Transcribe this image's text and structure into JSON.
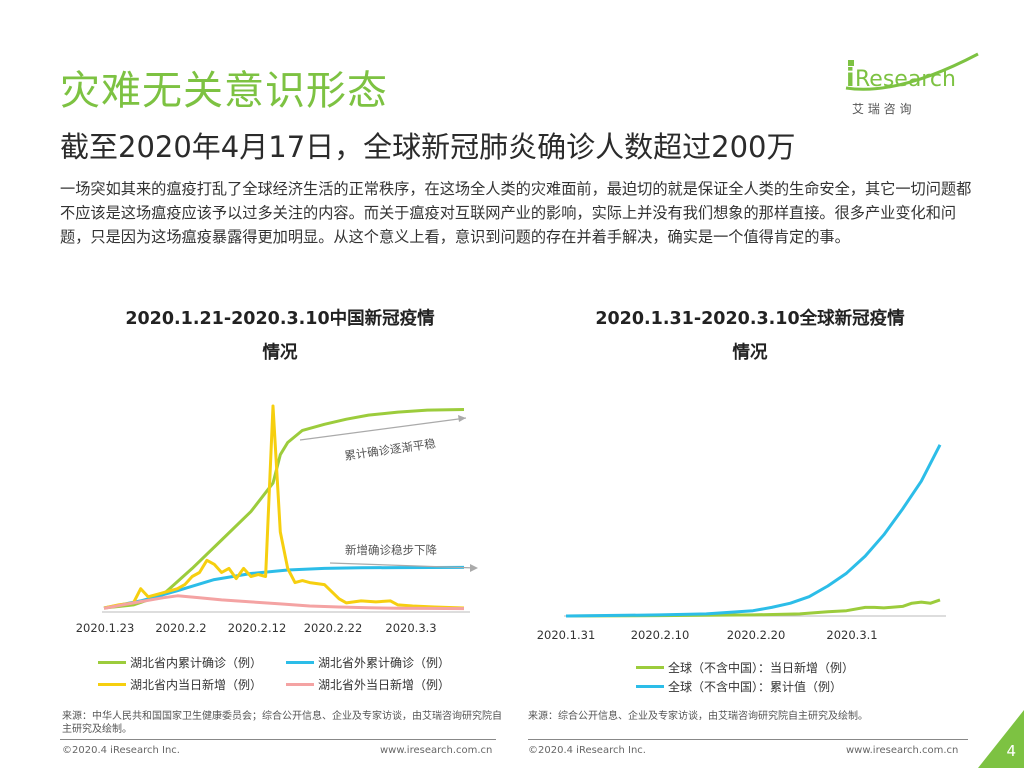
{
  "slide": {
    "title": "灾难无关意识形态",
    "subtitle": "截至2020年4月17日，全球新冠肺炎确诊人数超过200万",
    "body": "一场突如其来的瘟疫打乱了全球经济生活的正常秩序，在这场全人类的灾难面前，最迫切的就是保证全人类的生命安全，其它一切问题都不应该是这场瘟疫应该予以过多关注的内容。而关于瘟疫对互联网产业的影响，实际上并没有我们想象的那样直接。很多产业变化和问题，只是因为这场瘟疫暴露得更加明显。从这个意义上看，意识到问题的存在并着手解决，确实是一个值得肯定的事。",
    "page_number": "4"
  },
  "logo": {
    "brand_i": "i",
    "brand_rest": "Research",
    "chinese": "艾  瑞  咨  询"
  },
  "colors": {
    "accent": "#7dc242",
    "green": "#9ccc3c",
    "yellow": "#f6cf0f",
    "blue": "#2cbde8",
    "pink": "#f4a3a3"
  },
  "chart_data": [
    {
      "type": "line",
      "title_line1": "2020.1.21-2020.3.10中国新冠疫情",
      "title_line2": "情况",
      "x_ticks": [
        "2020.1.23",
        "2020.2.2",
        "2020.2.12",
        "2020.2.22",
        "2020.3.3"
      ],
      "x_range": [
        0,
        49
      ],
      "y_range": [
        0,
        100
      ],
      "annotations": [
        "累计确诊逐渐平稳",
        "新增确诊稳步下降"
      ],
      "series": [
        {
          "name": "湖北省内累计确诊（例）",
          "color": "#9ccc3c",
          "x": [
            0,
            4,
            8,
            12,
            16,
            20,
            23,
            24,
            25,
            27,
            30,
            33,
            36,
            40,
            44,
            49
          ],
          "y": [
            0.5,
            2,
            7,
            20,
            34,
            48,
            62,
            76,
            82,
            88,
            91,
            93.5,
            95.5,
            97,
            98,
            98.3
          ]
        },
        {
          "name": "湖北省外累计确诊（例）",
          "color": "#2cbde8",
          "x": [
            0,
            5,
            10,
            15,
            20,
            25,
            30,
            35,
            40,
            49
          ],
          "y": [
            0.5,
            4,
            9,
            14.5,
            17.5,
            19.2,
            20,
            20.3,
            20.4,
            20.5
          ]
        },
        {
          "name": "湖北省内当日新增（例）",
          "color": "#f6cf0f",
          "x": [
            0,
            2,
            4,
            5,
            6,
            8,
            10,
            11,
            12,
            13,
            14,
            15,
            16,
            17,
            18,
            19,
            20,
            21,
            22,
            23,
            24,
            25,
            26,
            27,
            28,
            30,
            32,
            33,
            35,
            37,
            39,
            40,
            42,
            45,
            49
          ],
          "y": [
            0.5,
            2,
            3,
            10,
            6,
            8,
            10,
            12,
            16,
            18,
            24,
            22,
            18,
            20,
            15,
            20,
            16,
            17,
            16,
            100,
            38,
            20,
            13,
            14,
            13,
            12,
            5,
            3,
            4,
            3.5,
            4,
            2,
            1.5,
            1,
            0.5
          ]
        },
        {
          "name": "湖北省外当日新增（例）",
          "color": "#f4a3a3",
          "x": [
            0,
            4,
            8,
            10,
            13,
            16,
            20,
            24,
            28,
            32,
            36,
            40,
            44,
            49
          ],
          "y": [
            0.3,
            3,
            5.5,
            6.5,
            5.5,
            4.5,
            3.5,
            2.5,
            1.5,
            1,
            0.6,
            0.4,
            0.3,
            0.2
          ]
        }
      ]
    },
    {
      "type": "line",
      "title_line1": "2020.1.31-2020.3.10全球新冠疫情",
      "title_line2": "情况",
      "x_ticks": [
        "2020.1.31",
        "2020.2.10",
        "2020.2.20",
        "2020.3.1"
      ],
      "x_range": [
        0,
        40
      ],
      "y_range": [
        0,
        100
      ],
      "series": [
        {
          "name": "全球（不含中国）：当日新增（例）",
          "color": "#9ccc3c",
          "x": [
            0,
            10,
            20,
            25,
            28,
            30,
            32,
            33,
            34,
            36,
            37,
            38,
            39,
            40
          ],
          "y": [
            0,
            0.2,
            0.5,
            1,
            2,
            2.5,
            4,
            4,
            3.8,
            4.5,
            6,
            6.5,
            6,
            7.5
          ]
        },
        {
          "name": "全球（不含中国）：累计值（例）",
          "color": "#2cbde8",
          "x": [
            0,
            10,
            15,
            20,
            22,
            24,
            26,
            28,
            30,
            32,
            34,
            36,
            38,
            40
          ],
          "y": [
            0,
            0.5,
            1,
            2.5,
            4,
            6,
            9,
            14,
            20,
            28,
            38,
            50,
            63,
            80
          ]
        }
      ]
    }
  ],
  "legend": {
    "chart1": [
      "湖北省内累计确诊（例）",
      "湖北省外累计确诊（例）",
      "湖北省内当日新增（例）",
      "湖北省外当日新增（例）"
    ],
    "chart2": [
      "全球（不含中国）：当日新增（例）",
      "全球（不含中国）：累计值（例）"
    ]
  },
  "source": {
    "left": "来源：中华人民共和国国家卫生健康委员会；综合公开信息、企业及专家访谈，由艾瑞咨询研究院自主研究及绘制。",
    "right": "来源：综合公开信息、企业及专家访谈，由艾瑞咨询研究院自主研究及绘制。"
  },
  "footer": {
    "copyright_left": "©2020.4 iResearch Inc.",
    "url_left": "www.iresearch.com.cn",
    "copyright_right": "©2020.4 iResearch Inc.",
    "url_right": "www.iresearch.com.cn"
  }
}
